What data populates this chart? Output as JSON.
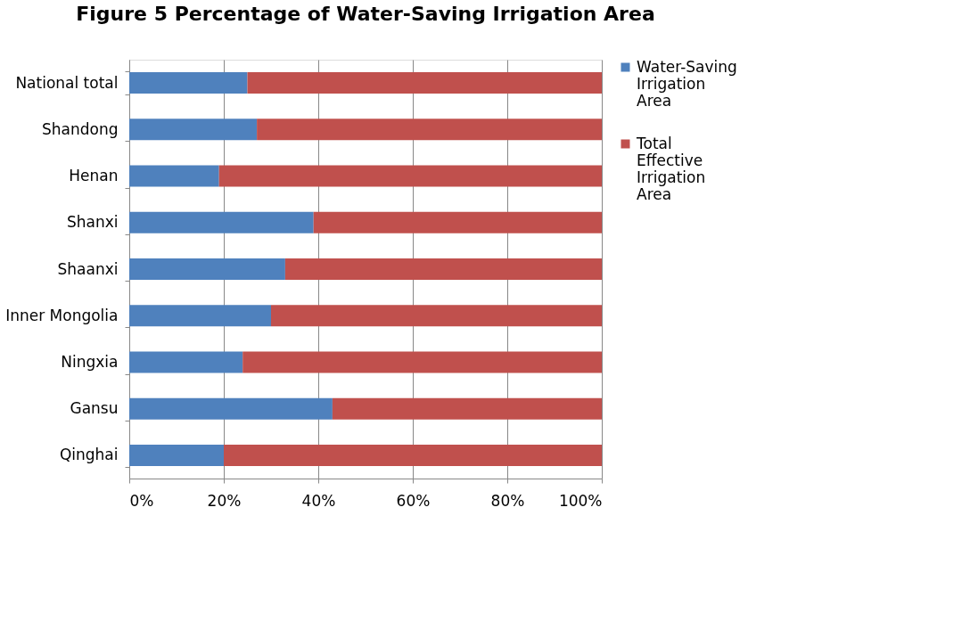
{
  "chart_data": {
    "type": "bar",
    "orientation": "horizontal",
    "stacked": true,
    "title": "Figure 5 Percentage of Water-Saving Irrigation Area",
    "categories": [
      "National total",
      "Shandong",
      "Henan",
      "Shanxi",
      "Shaanxi",
      "Inner Mongolia",
      "Ningxia",
      "Gansu",
      "Qinghai"
    ],
    "series": [
      {
        "name": "Water-Saving Irrigation Area",
        "color": "#4f81bd",
        "values": [
          25,
          27,
          19,
          39,
          33,
          30,
          24,
          43,
          20
        ]
      },
      {
        "name": "Total Effective Irrigation Area",
        "color": "#c0504d",
        "values": [
          75,
          73,
          81,
          61,
          67,
          70,
          76,
          57,
          80
        ]
      }
    ],
    "xlim": [
      0,
      100
    ],
    "xticks": [
      {
        "value": 0,
        "label": "0%"
      },
      {
        "value": 20,
        "label": "20%"
      },
      {
        "value": 40,
        "label": "40%"
      },
      {
        "value": 60,
        "label": "60%"
      },
      {
        "value": 80,
        "label": "80%"
      },
      {
        "value": 100,
        "label": "100%"
      }
    ],
    "grid": "x",
    "legend": "right"
  }
}
